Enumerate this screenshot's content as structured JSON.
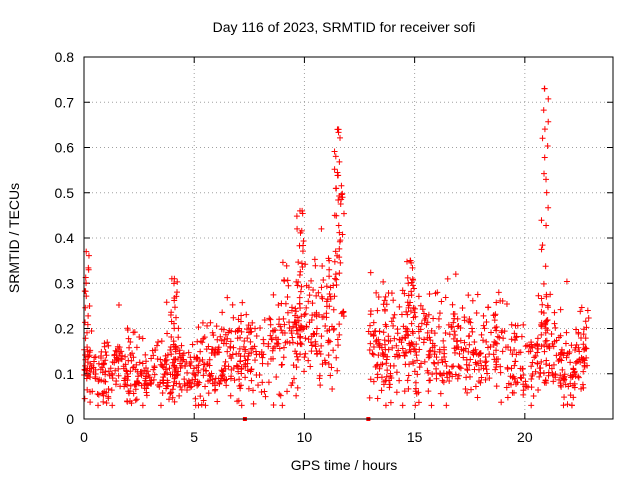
{
  "chart_data": {
    "type": "scatter",
    "title": "Day 116 of 2023, SRMTID for receiver sofi",
    "xlabel": "GPS time / hours",
    "ylabel": "SRMTID / TECUs",
    "xlim": [
      0,
      24
    ],
    "ylim": [
      0,
      0.8
    ],
    "xticks": [
      0,
      5,
      10,
      15,
      20
    ],
    "xtick_labels": [
      "0",
      "5",
      "10",
      "15",
      "20"
    ],
    "yticks": [
      0,
      0.1,
      0.2,
      0.3,
      0.4,
      0.5,
      0.6,
      0.7,
      0.8
    ],
    "ytick_labels": [
      "0",
      "0.1",
      "0.2",
      "0.3",
      "0.4",
      "0.5",
      "0.6",
      "0.7",
      "0.8"
    ],
    "grid": true,
    "marker": "+",
    "color": "#ff0000",
    "x_range_of_data": [
      0,
      22.9
    ],
    "y_range_of_data": [
      0.03,
      0.73
    ],
    "data_gap_hours": [
      11.8,
      12.9
    ],
    "peak_values": [
      {
        "x": 0.1,
        "y": 0.37
      },
      {
        "x": 4.1,
        "y": 0.31
      },
      {
        "x": 9.8,
        "y": 0.46
      },
      {
        "x": 11.5,
        "y": 0.64
      },
      {
        "x": 14.8,
        "y": 0.35
      },
      {
        "x": 20.9,
        "y": 0.73
      }
    ],
    "zero_markers_x": [
      7.3,
      12.9
    ]
  }
}
